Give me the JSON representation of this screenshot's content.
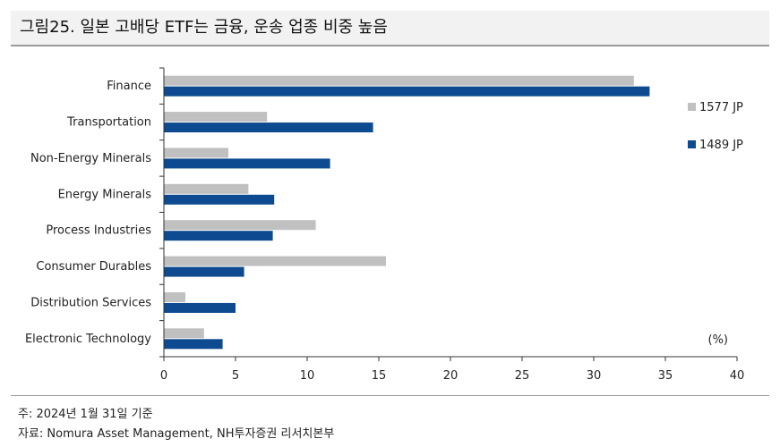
{
  "header": {
    "title": "그림25. 일본 고배당 ETF는 금융, 운송 업종 비중 높음"
  },
  "chart_data": {
    "type": "bar",
    "orientation": "horizontal",
    "categories": [
      "Finance",
      "Transportation",
      "Non-Energy Minerals",
      "Energy Minerals",
      "Process Industries",
      "Consumer Durables",
      "Distribution Services",
      "Electronic Technology"
    ],
    "series": [
      {
        "name": "1577 JP",
        "color": "#c0c0c0",
        "values": [
          32.8,
          7.2,
          4.5,
          5.9,
          10.6,
          15.5,
          1.5,
          2.8
        ]
      },
      {
        "name": "1489 JP",
        "color": "#0d4a8f",
        "values": [
          33.9,
          14.6,
          11.6,
          7.7,
          7.6,
          5.6,
          5.0,
          4.1
        ]
      }
    ],
    "xlim": [
      0,
      40
    ],
    "xticks": [
      0,
      5,
      10,
      15,
      20,
      25,
      30,
      35,
      40
    ],
    "unit_label": "(%)",
    "legend_position": "right",
    "grid": false
  },
  "footer": {
    "date_note": "주: 2024년 1월 31일 기준",
    "source_note": "자료: Nomura Asset Management, NH투자증권 리서치본부"
  }
}
